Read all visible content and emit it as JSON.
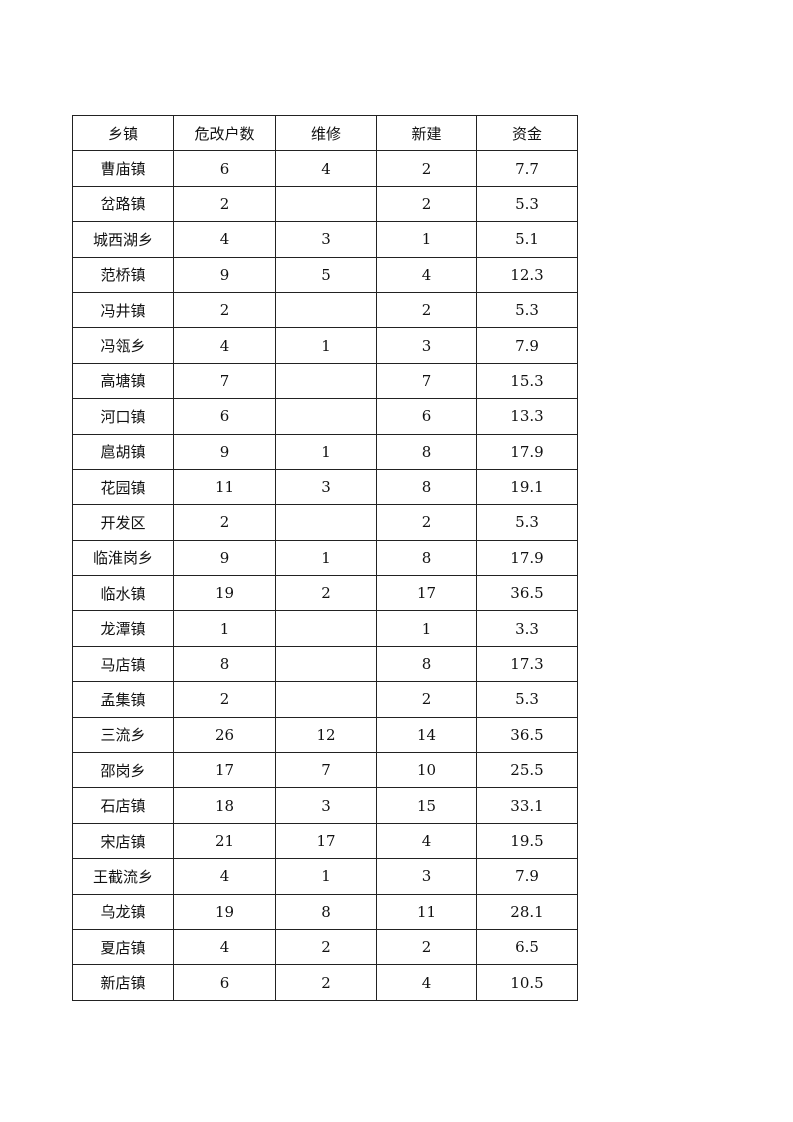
{
  "table": {
    "headers": [
      "乡镇",
      "危改户数",
      "维修",
      "新建",
      "资金"
    ],
    "rows": [
      [
        "曹庙镇",
        "6",
        "4",
        "2",
        "7.7"
      ],
      [
        "岔路镇",
        "2",
        "",
        "2",
        "5.3"
      ],
      [
        "城西湖乡",
        "4",
        "3",
        "1",
        "5.1"
      ],
      [
        "范桥镇",
        "9",
        "5",
        "4",
        "12.3"
      ],
      [
        "冯井镇",
        "2",
        "",
        "2",
        "5.3"
      ],
      [
        "冯瓴乡",
        "4",
        "1",
        "3",
        "7.9"
      ],
      [
        "高塘镇",
        "7",
        "",
        "7",
        "15.3"
      ],
      [
        "河口镇",
        "6",
        "",
        "6",
        "13.3"
      ],
      [
        "扈胡镇",
        "9",
        "1",
        "8",
        "17.9"
      ],
      [
        "花园镇",
        "11",
        "3",
        "8",
        "19.1"
      ],
      [
        "开发区",
        "2",
        "",
        "2",
        "5.3"
      ],
      [
        "临淮岗乡",
        "9",
        "1",
        "8",
        "17.9"
      ],
      [
        "临水镇",
        "19",
        "2",
        "17",
        "36.5"
      ],
      [
        "龙潭镇",
        "1",
        "",
        "1",
        "3.3"
      ],
      [
        "马店镇",
        "8",
        "",
        "8",
        "17.3"
      ],
      [
        "孟集镇",
        "2",
        "",
        "2",
        "5.3"
      ],
      [
        "三流乡",
        "26",
        "12",
        "14",
        "36.5"
      ],
      [
        "邵岗乡",
        "17",
        "7",
        "10",
        "25.5"
      ],
      [
        "石店镇",
        "18",
        "3",
        "15",
        "33.1"
      ],
      [
        "宋店镇",
        "21",
        "17",
        "4",
        "19.5"
      ],
      [
        "王截流乡",
        "4",
        "1",
        "3",
        "7.9"
      ],
      [
        "乌龙镇",
        "19",
        "8",
        "11",
        "28.1"
      ],
      [
        "夏店镇",
        "4",
        "2",
        "2",
        "6.5"
      ],
      [
        "新店镇",
        "6",
        "2",
        "4",
        "10.5"
      ]
    ]
  }
}
